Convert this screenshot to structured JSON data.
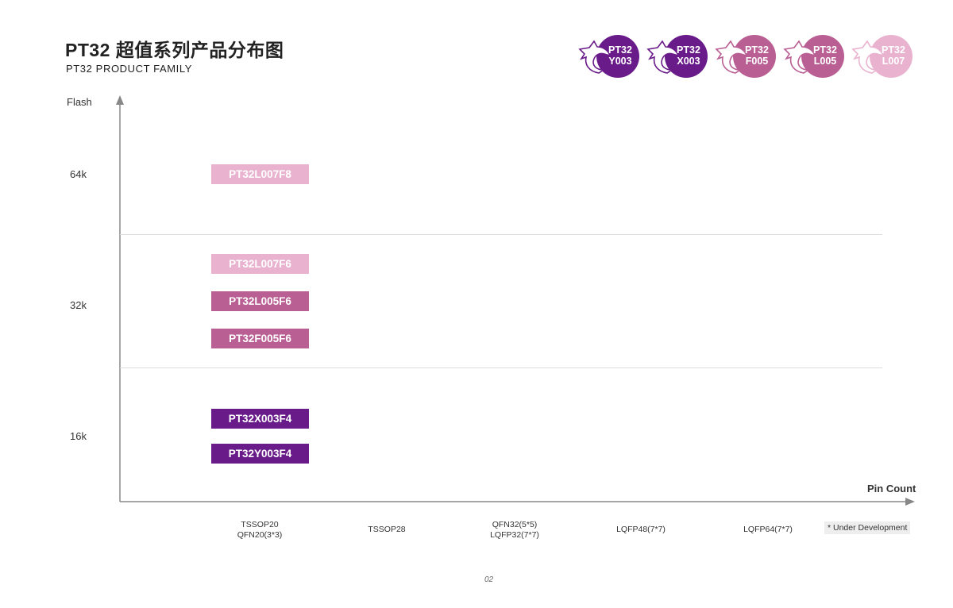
{
  "header": {
    "title": "PT32 超值系列产品分布图",
    "subtitle": "PT32 PRODUCT FAMILY"
  },
  "logos": [
    {
      "line1": "PT32",
      "line2": "Y003",
      "color": "#6a1b8a",
      "icon": "shark-icon"
    },
    {
      "line1": "PT32",
      "line2": "X003",
      "color": "#6a1b8a",
      "icon": "shark-icon"
    },
    {
      "line1": "PT32",
      "line2": "F005",
      "color": "#b95f93",
      "icon": "shark-icon"
    },
    {
      "line1": "PT32",
      "line2": "L005",
      "color": "#b95f93",
      "icon": "shark-icon"
    },
    {
      "line1": "PT32",
      "line2": "L007",
      "color": "#e9b3d0",
      "icon": "shark-icon"
    }
  ],
  "axes": {
    "y_label": "Flash",
    "x_label": "Pin Count",
    "y_ticks": [
      "64k",
      "32k",
      "16k"
    ]
  },
  "categories": [
    {
      "line1": "TSSOP20",
      "line2": "QFN20(3*3)"
    },
    {
      "line1": "TSSOP28",
      "line2": ""
    },
    {
      "line1": "QFN32(5*5)",
      "line2": "LQFP32(7*7)"
    },
    {
      "line1": "LQFP48(7*7)",
      "line2": ""
    },
    {
      "line1": "LQFP64(7*7)",
      "line2": ""
    }
  ],
  "products": [
    {
      "name": "PT32L007F8",
      "flash": "64k",
      "package": "TSSOP20 / QFN20(3*3)",
      "color": "#e9b3d0"
    },
    {
      "name": "PT32L007F6",
      "flash": "32k",
      "package": "TSSOP20 / QFN20(3*3)",
      "color": "#e9b3d0"
    },
    {
      "name": "PT32L005F6",
      "flash": "32k",
      "package": "TSSOP20 / QFN20(3*3)",
      "color": "#b95f93"
    },
    {
      "name": "PT32F005F6",
      "flash": "32k",
      "package": "TSSOP20 / QFN20(3*3)",
      "color": "#b95f93"
    },
    {
      "name": "PT32X003F4",
      "flash": "16k",
      "package": "TSSOP20 / QFN20(3*3)",
      "color": "#6a1b8a"
    },
    {
      "name": "PT32Y003F4",
      "flash": "16k",
      "package": "TSSOP20 / QFN20(3*3)",
      "color": "#6a1b8a"
    }
  ],
  "legend": "* Under Development",
  "page_number": "02"
}
